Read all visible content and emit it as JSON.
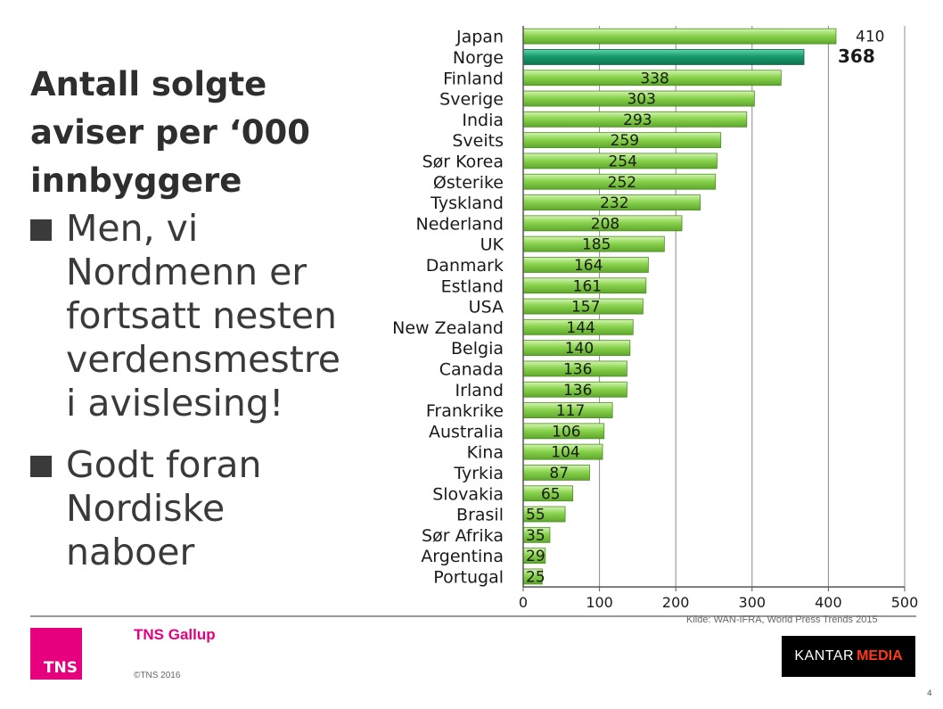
{
  "slide": {
    "title": "Antall solgte aviser per ‘000 innbyggere",
    "bullets": [
      "Men, vi Nordmenn er fortsatt nesten verdensmestre i avislesing!",
      "Godt foran Nordiske naboer"
    ]
  },
  "chart_data": {
    "type": "bar",
    "orientation": "horizontal",
    "categories": [
      "Japan",
      "Norge",
      "Finland",
      "Sverige",
      "India",
      "Sveits",
      "Sør Korea",
      "Østerike",
      "Tyskland",
      "Nederland",
      "UK",
      "Danmark",
      "Estland",
      "USA",
      "New Zealand",
      "Belgia",
      "Canada",
      "Irland",
      "Frankrike",
      "Australia",
      "Kina",
      "Tyrkia",
      "Slovakia",
      "Brasil",
      "Sør Afrika",
      "Argentina",
      "Portugal"
    ],
    "values": [
      410,
      368,
      338,
      303,
      293,
      259,
      254,
      252,
      232,
      208,
      185,
      164,
      161,
      157,
      144,
      140,
      136,
      136,
      117,
      106,
      104,
      87,
      65,
      55,
      35,
      29,
      25
    ],
    "highlight": "Norge",
    "xlim": [
      0,
      500
    ],
    "xticks": [
      0,
      100,
      200,
      300,
      400,
      500
    ],
    "grid": true,
    "colors": {
      "bar": "#8ad44f",
      "bar_highlight": "#1a9c6c"
    }
  },
  "footer": {
    "source": "Kilde: WAN-IFRA, World Press Trends 2015",
    "brand": "TNS Gallup",
    "tns_logo_text": "TNS",
    "copyright": "©TNS 2016",
    "kantar_part1": "KANTAR",
    "kantar_part2": "MEDIA",
    "page_number": "4"
  }
}
